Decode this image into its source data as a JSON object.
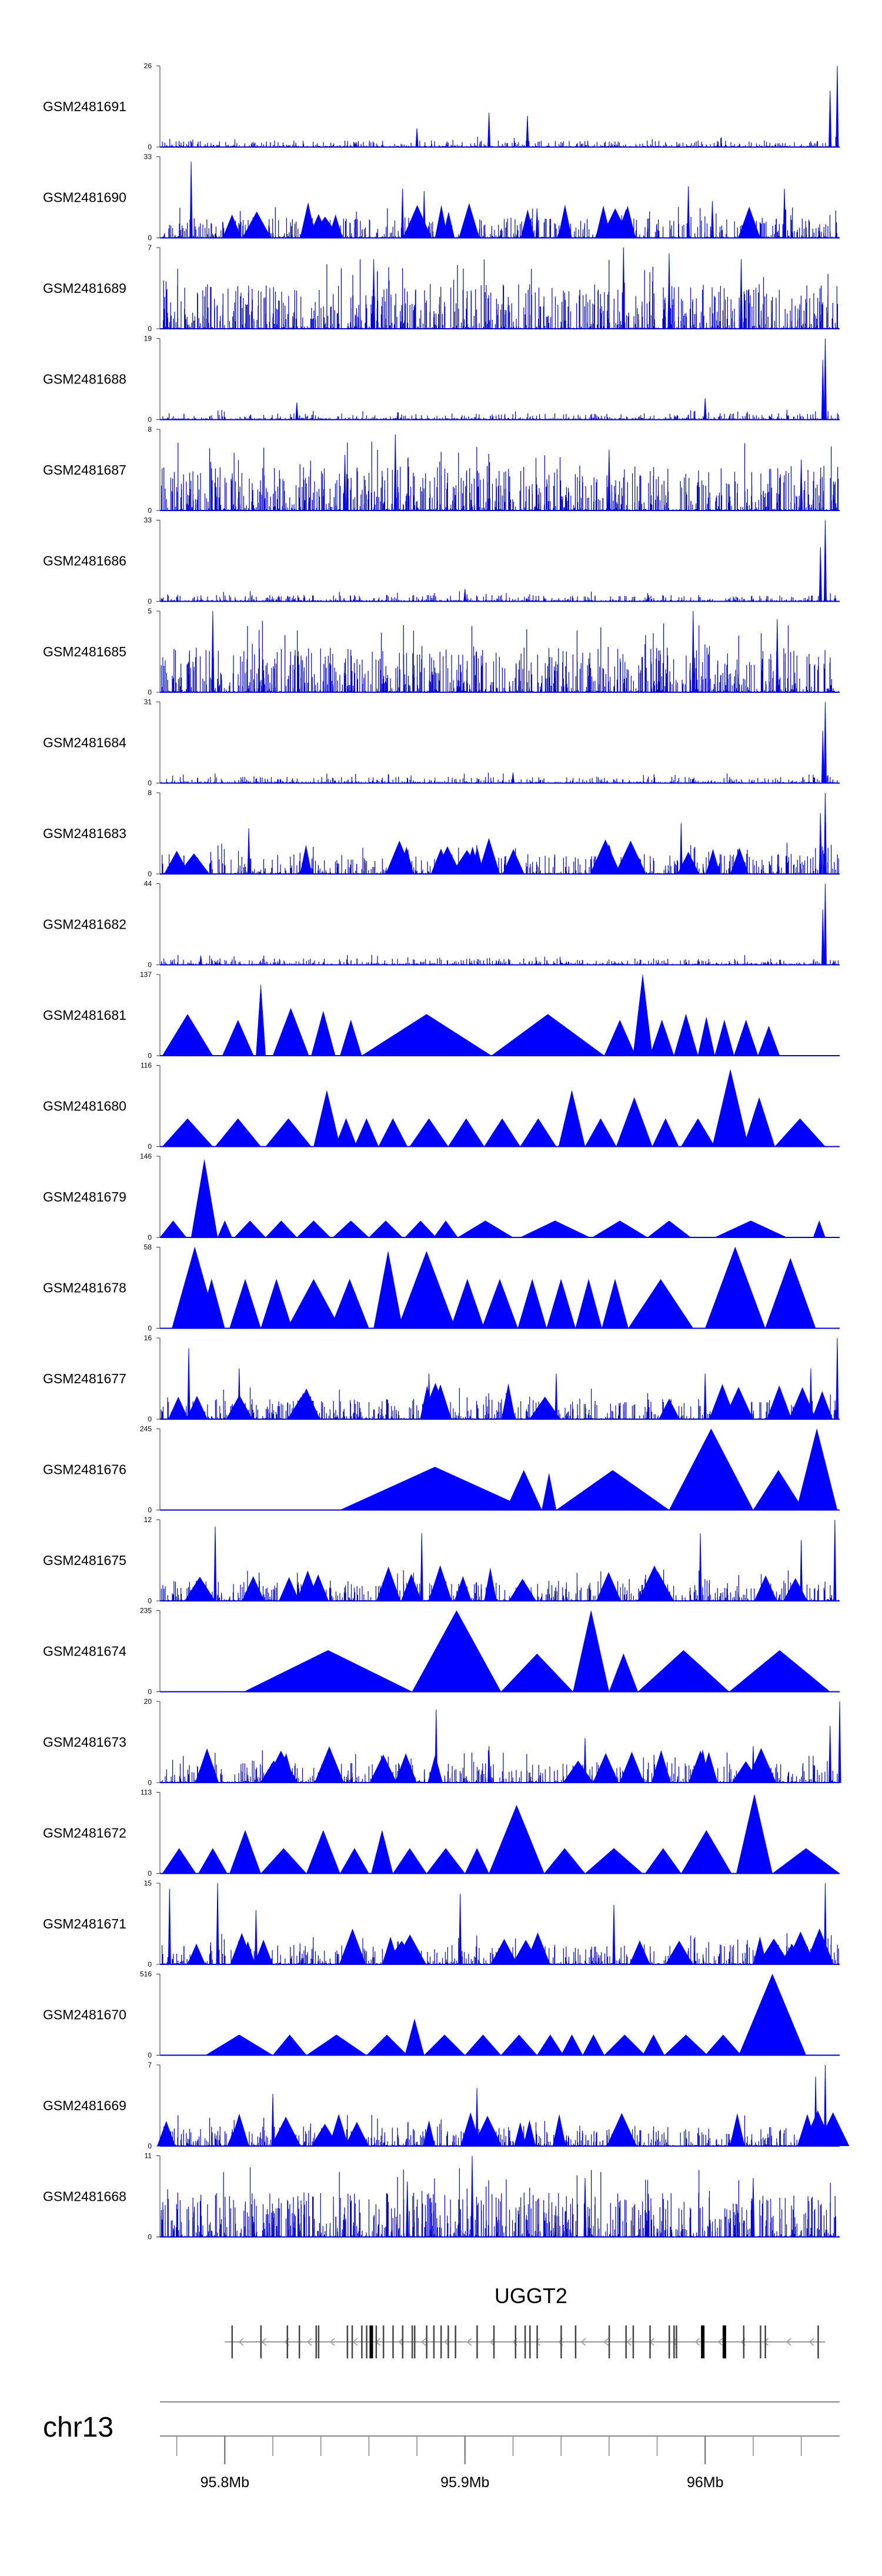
{
  "chart_data": {
    "type": "area",
    "title": "",
    "chromosome": "chr13",
    "xlim": [
      95.773,
      96.056
    ],
    "axis_ticks": [
      {
        "value": 95.8,
        "label": "95.8Mb"
      },
      {
        "value": 95.9,
        "label": "95.9Mb"
      },
      {
        "value": 96.0,
        "label": "96Mb"
      }
    ],
    "series_color": "#0000cc",
    "fill_color": "#0000ff",
    "gene": {
      "name": "UGGT2",
      "strand": "-",
      "start": 95.8,
      "end": 96.05,
      "exons": [
        95.803,
        95.815,
        95.826,
        95.831,
        95.838,
        95.839,
        95.851,
        95.853,
        95.857,
        95.859,
        95.861,
        95.863,
        95.866,
        95.87,
        95.874,
        95.878,
        95.879,
        95.884,
        95.887,
        95.89,
        95.893,
        95.896,
        95.905,
        95.912,
        95.921,
        95.925,
        95.927,
        95.93,
        95.94,
        95.946,
        95.96,
        95.967,
        95.97,
        95.977,
        95.985,
        95.987,
        95.988,
        95.999,
        96.008,
        96.016,
        96.023,
        96.025,
        96.047
      ]
    },
    "tracks": [
      {
        "name": "GSM2481691",
        "ylim": [
          0,
          26
        ],
        "style": "signal",
        "peaks": [
          [
            96.055,
            26
          ],
          [
            96.052,
            18
          ],
          [
            95.926,
            10
          ],
          [
            95.91,
            11
          ],
          [
            95.88,
            6
          ]
        ]
      },
      {
        "name": "GSM2481690",
        "ylim": [
          0,
          33
        ],
        "style": "mixed",
        "peaks": [
          [
            95.786,
            31
          ],
          [
            95.874,
            20
          ],
          [
            95.883,
            19
          ],
          [
            95.993,
            21
          ],
          [
            96.003,
            15
          ],
          [
            96.033,
            20
          ],
          [
            95.93,
            12
          ]
        ]
      },
      {
        "name": "GSM2481689",
        "ylim": [
          0,
          7
        ],
        "style": "dense",
        "peaks": [
          [
            95.862,
            6
          ],
          [
            95.966,
            7
          ],
          [
            95.985,
            6.5
          ],
          [
            96.015,
            6
          ]
        ]
      },
      {
        "name": "GSM2481688",
        "ylim": [
          0,
          19
        ],
        "style": "signal",
        "peaks": [
          [
            96.05,
            19
          ],
          [
            96.049,
            14
          ],
          [
            96.0,
            5
          ],
          [
            95.83,
            4
          ]
        ]
      },
      {
        "name": "GSM2481687",
        "ylim": [
          0,
          8
        ],
        "style": "dense",
        "peaks": [
          [
            95.871,
            7.5
          ],
          [
            95.85,
            5.5
          ],
          [
            95.96,
            6
          ],
          [
            96.04,
            5
          ]
        ]
      },
      {
        "name": "GSM2481686",
        "ylim": [
          0,
          33
        ],
        "style": "signal",
        "peaks": [
          [
            96.05,
            33
          ],
          [
            96.048,
            22
          ],
          [
            95.9,
            5
          ]
        ]
      },
      {
        "name": "GSM2481685",
        "ylim": [
          0,
          5
        ],
        "style": "dense",
        "peaks": [
          [
            95.795,
            5
          ],
          [
            95.995,
            5
          ],
          [
            96.03,
            4.5
          ]
        ]
      },
      {
        "name": "GSM2481684",
        "ylim": [
          0,
          31
        ],
        "style": "signal",
        "peaks": [
          [
            96.05,
            31
          ],
          [
            96.049,
            20
          ],
          [
            95.92,
            4
          ]
        ]
      },
      {
        "name": "GSM2481683",
        "ylim": [
          0,
          8
        ],
        "style": "mixed",
        "peaks": [
          [
            96.05,
            8
          ],
          [
            96.048,
            6
          ],
          [
            95.99,
            5
          ],
          [
            95.81,
            4.5
          ]
        ]
      },
      {
        "name": "GSM2481682",
        "ylim": [
          0,
          44
        ],
        "style": "signal",
        "peaks": [
          [
            96.05,
            44
          ],
          [
            96.049,
            30
          ],
          [
            95.79,
            5
          ]
        ]
      },
      {
        "name": "GSM2481681",
        "ylim": [
          0,
          137
        ],
        "style": "blocks",
        "segments": [
          [
            95.774,
            95.795,
            70
          ],
          [
            95.799,
            95.812,
            60
          ],
          [
            95.813,
            95.817,
            120
          ],
          [
            95.82,
            95.835,
            80
          ],
          [
            95.836,
            95.846,
            75
          ],
          [
            95.848,
            95.857,
            60
          ],
          [
            95.857,
            95.911,
            70
          ],
          [
            95.911,
            95.958,
            70
          ],
          [
            95.958,
            95.971,
            60
          ],
          [
            95.97,
            95.978,
            140
          ],
          [
            95.977,
            95.987,
            60
          ],
          [
            95.987,
            95.997,
            70
          ],
          [
            95.997,
            96.004,
            65
          ],
          [
            96.004,
            96.012,
            60
          ],
          [
            96.012,
            96.022,
            60
          ],
          [
            96.022,
            96.031,
            50
          ]
        ]
      },
      {
        "name": "GSM2481680",
        "ylim": [
          0,
          116
        ],
        "style": "blocks",
        "segments": [
          [
            95.774,
            95.795,
            40
          ],
          [
            95.796,
            95.815,
            40
          ],
          [
            95.817,
            95.836,
            40
          ],
          [
            95.837,
            95.848,
            80
          ],
          [
            95.846,
            95.855,
            40
          ],
          [
            95.854,
            95.864,
            40
          ],
          [
            95.864,
            95.876,
            40
          ],
          [
            95.877,
            95.893,
            40
          ],
          [
            95.893,
            95.908,
            40
          ],
          [
            95.908,
            95.923,
            40
          ],
          [
            95.923,
            95.938,
            40
          ],
          [
            95.939,
            95.95,
            80
          ],
          [
            95.95,
            95.963,
            40
          ],
          [
            95.963,
            95.978,
            70
          ],
          [
            95.978,
            95.989,
            40
          ],
          [
            95.99,
            96.004,
            40
          ],
          [
            96.003,
            96.018,
            110
          ],
          [
            96.016,
            96.029,
            70
          ],
          [
            96.029,
            96.05,
            40
          ]
        ]
      },
      {
        "name": "GSM2481679",
        "ylim": [
          0,
          146
        ],
        "style": "blocks",
        "segments": [
          [
            95.773,
            95.784,
            30
          ],
          [
            95.786,
            95.797,
            140
          ],
          [
            95.797,
            95.803,
            30
          ],
          [
            95.804,
            95.817,
            30
          ],
          [
            95.817,
            95.83,
            30
          ],
          [
            95.83,
            95.844,
            30
          ],
          [
            95.845,
            95.86,
            30
          ],
          [
            95.86,
            95.874,
            30
          ],
          [
            95.875,
            95.888,
            30
          ],
          [
            95.887,
            95.897,
            30
          ],
          [
            95.897,
            95.92,
            30
          ],
          [
            95.923,
            95.952,
            30
          ],
          [
            95.953,
            95.976,
            30
          ],
          [
            95.976,
            95.994,
            30
          ],
          [
            96.004,
            96.034,
            30
          ],
          [
            96.045,
            96.05,
            30
          ]
        ]
      },
      {
        "name": "GSM2481678",
        "ylim": [
          0,
          58
        ],
        "style": "blocks",
        "segments": [
          [
            95.778,
            95.797,
            58
          ],
          [
            95.789,
            95.8,
            35
          ],
          [
            95.802,
            95.815,
            35
          ],
          [
            95.815,
            95.828,
            35
          ],
          [
            95.826,
            95.848,
            35
          ],
          [
            95.844,
            95.86,
            35
          ],
          [
            95.862,
            95.874,
            55
          ],
          [
            95.872,
            95.896,
            55
          ],
          [
            95.894,
            95.908,
            35
          ],
          [
            95.907,
            95.922,
            35
          ],
          [
            95.922,
            95.934,
            35
          ],
          [
            95.934,
            95.946,
            35
          ],
          [
            95.946,
            95.957,
            35
          ],
          [
            95.957,
            95.968,
            35
          ],
          [
            95.968,
            95.995,
            35
          ],
          [
            96.0,
            96.025,
            58
          ],
          [
            96.025,
            96.046,
            50
          ]
        ]
      },
      {
        "name": "GSM2481677",
        "ylim": [
          0,
          16
        ],
        "style": "mixed",
        "peaks": [
          [
            96.055,
            16
          ],
          [
            95.785,
            14
          ],
          [
            95.806,
            10
          ],
          [
            95.885,
            9
          ],
          [
            95.938,
            9
          ],
          [
            96.0,
            9
          ],
          [
            96.044,
            10
          ]
        ]
      },
      {
        "name": "GSM2481676",
        "ylim": [
          0,
          245
        ],
        "style": "blocks",
        "segments": [
          [
            95.848,
            95.927,
            130
          ],
          [
            95.917,
            95.932,
            120
          ],
          [
            95.932,
            95.938,
            110
          ],
          [
            95.938,
            95.985,
            120
          ],
          [
            95.985,
            96.02,
            245
          ],
          [
            96.02,
            96.041,
            120
          ],
          [
            96.038,
            96.055,
            250
          ]
        ]
      },
      {
        "name": "GSM2481675",
        "ylim": [
          0,
          12
        ],
        "style": "mixed",
        "peaks": [
          [
            96.054,
            12
          ],
          [
            95.796,
            11
          ],
          [
            95.882,
            10
          ],
          [
            95.998,
            10
          ],
          [
            96.04,
            9
          ]
        ]
      },
      {
        "name": "GSM2481674",
        "ylim": [
          0,
          235
        ],
        "style": "blocks",
        "segments": [
          [
            95.808,
            95.878,
            120
          ],
          [
            95.878,
            95.915,
            235
          ],
          [
            95.915,
            95.945,
            110
          ],
          [
            95.945,
            95.96,
            240
          ],
          [
            95.96,
            95.972,
            110
          ],
          [
            95.972,
            96.01,
            120
          ],
          [
            96.01,
            96.052,
            120
          ]
        ]
      },
      {
        "name": "GSM2481673",
        "ylim": [
          0,
          20
        ],
        "style": "mixed",
        "peaks": [
          [
            96.056,
            20
          ],
          [
            96.052,
            14
          ],
          [
            95.888,
            18
          ],
          [
            95.95,
            11
          ],
          [
            95.91,
            9
          ],
          [
            96.02,
            9
          ]
        ]
      },
      {
        "name": "GSM2481672",
        "ylim": [
          0,
          113
        ],
        "style": "blocks",
        "segments": [
          [
            95.774,
            95.788,
            35
          ],
          [
            95.789,
            95.801,
            35
          ],
          [
            95.802,
            95.815,
            60
          ],
          [
            95.815,
            95.834,
            35
          ],
          [
            95.834,
            95.848,
            60
          ],
          [
            95.848,
            95.86,
            35
          ],
          [
            95.861,
            95.87,
            60
          ],
          [
            95.87,
            95.884,
            35
          ],
          [
            95.884,
            95.9,
            35
          ],
          [
            95.9,
            95.91,
            35
          ],
          [
            95.91,
            95.933,
            95
          ],
          [
            95.933,
            95.95,
            35
          ],
          [
            95.95,
            95.974,
            35
          ],
          [
            95.975,
            95.99,
            35
          ],
          [
            95.99,
            96.011,
            60
          ],
          [
            96.013,
            96.028,
            110
          ],
          [
            96.028,
            96.056,
            35
          ]
        ]
      },
      {
        "name": "GSM2481671",
        "ylim": [
          0,
          15
        ],
        "style": "mixed",
        "peaks": [
          [
            95.777,
            14
          ],
          [
            95.797,
            15
          ],
          [
            95.813,
            10
          ],
          [
            95.898,
            13
          ],
          [
            95.962,
            11
          ],
          [
            96.05,
            15
          ]
        ]
      },
      {
        "name": "GSM2481670",
        "ylim": [
          0,
          516
        ],
        "style": "blocks",
        "segments": [
          [
            95.792,
            95.82,
            130
          ],
          [
            95.82,
            95.834,
            130
          ],
          [
            95.834,
            95.859,
            130
          ],
          [
            95.859,
            95.876,
            130
          ],
          [
            95.875,
            95.883,
            230
          ],
          [
            95.883,
            95.9,
            130
          ],
          [
            95.9,
            95.915,
            130
          ],
          [
            95.915,
            95.93,
            130
          ],
          [
            95.93,
            95.941,
            130
          ],
          [
            95.94,
            95.949,
            130
          ],
          [
            95.949,
            95.958,
            130
          ],
          [
            95.958,
            95.975,
            130
          ],
          [
            95.974,
            95.983,
            130
          ],
          [
            95.983,
            96.001,
            130
          ],
          [
            96.0,
            96.015,
            130
          ],
          [
            96.014,
            96.042,
            516
          ]
        ]
      },
      {
        "name": "GSM2481669",
        "ylim": [
          0,
          7
        ],
        "style": "mixed",
        "peaks": [
          [
            96.05,
            7
          ],
          [
            96.046,
            6
          ],
          [
            95.905,
            5
          ],
          [
            95.82,
            4.5
          ]
        ]
      },
      {
        "name": "GSM2481668",
        "ylim": [
          0,
          11
        ],
        "style": "dense",
        "peaks": [
          [
            95.903,
            11
          ],
          [
            95.876,
            7.5
          ],
          [
            95.95,
            8
          ],
          [
            96.02,
            8
          ]
        ]
      }
    ]
  }
}
